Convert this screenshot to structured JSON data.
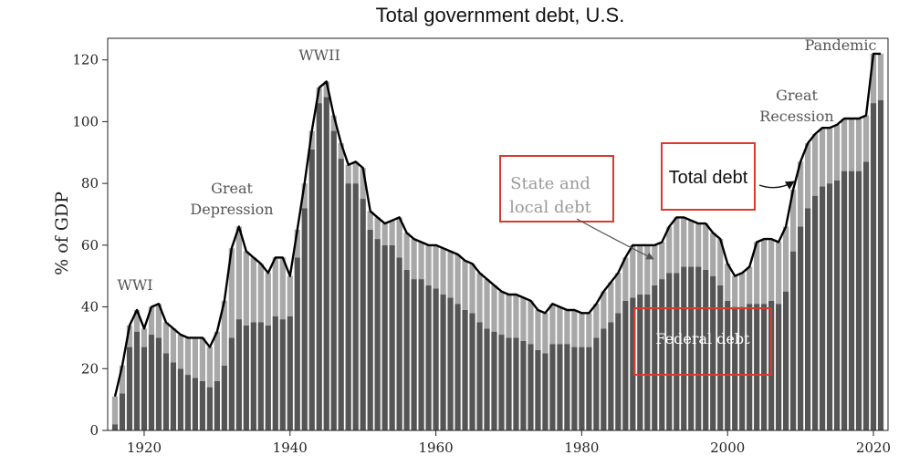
{
  "chart_data": {
    "type": "bar",
    "title": "Total government debt, U.S.",
    "xlabel": "",
    "ylabel": "% of GDP",
    "xlim": [
      1915,
      2022
    ],
    "ylim": [
      0,
      127
    ],
    "xticks": [
      1920,
      1940,
      1960,
      1980,
      2000,
      2020
    ],
    "yticks": [
      0,
      20,
      40,
      60,
      80,
      100,
      120
    ],
    "colors": {
      "federal": "#555555",
      "state_local": "#a8a8a8",
      "total_line": "#000000",
      "highlight_box": "#d93a2b"
    },
    "years": [
      1916,
      1917,
      1918,
      1919,
      1920,
      1921,
      1922,
      1923,
      1924,
      1925,
      1926,
      1927,
      1928,
      1929,
      1930,
      1931,
      1932,
      1933,
      1934,
      1935,
      1936,
      1937,
      1938,
      1939,
      1940,
      1941,
      1942,
      1943,
      1944,
      1945,
      1946,
      1947,
      1948,
      1949,
      1950,
      1951,
      1952,
      1953,
      1954,
      1955,
      1956,
      1957,
      1958,
      1959,
      1960,
      1961,
      1962,
      1963,
      1964,
      1965,
      1966,
      1967,
      1968,
      1969,
      1970,
      1971,
      1972,
      1973,
      1974,
      1975,
      1976,
      1977,
      1978,
      1979,
      1980,
      1981,
      1982,
      1983,
      1984,
      1985,
      1986,
      1987,
      1988,
      1989,
      1990,
      1991,
      1992,
      1993,
      1994,
      1995,
      1996,
      1997,
      1998,
      1999,
      2000,
      2001,
      2002,
      2003,
      2004,
      2005,
      2006,
      2007,
      2008,
      2009,
      2010,
      2011,
      2012,
      2013,
      2014,
      2015,
      2016,
      2017,
      2018,
      2019,
      2020,
      2021
    ],
    "series": [
      {
        "name": "Federal debt",
        "values": [
          2,
          12,
          27,
          32,
          27,
          31,
          30,
          25,
          22,
          20,
          18,
          17,
          16,
          14,
          16,
          21,
          30,
          36,
          34,
          35,
          35,
          34,
          37,
          36,
          37,
          56,
          72,
          91,
          106,
          108,
          97,
          88,
          80,
          80,
          75,
          65,
          62,
          60,
          60,
          56,
          52,
          49,
          49,
          47,
          46,
          44,
          43,
          41,
          39,
          38,
          35,
          33,
          32,
          31,
          30,
          30,
          29,
          28,
          26,
          25,
          28,
          28,
          28,
          27,
          27,
          27,
          30,
          33,
          35,
          38,
          42,
          43,
          44,
          44,
          47,
          49,
          51,
          51,
          53,
          53,
          53,
          52,
          50,
          47,
          42,
          40,
          40,
          41,
          41,
          41,
          42,
          41,
          45,
          58,
          66,
          72,
          76,
          79,
          80,
          81,
          84,
          84,
          84,
          87,
          106,
          107
        ]
      },
      {
        "name": "State and local debt",
        "values": [
          9,
          9,
          7,
          7,
          6,
          9,
          11,
          10,
          11,
          11,
          12,
          13,
          14,
          13,
          16,
          21,
          29,
          30,
          24,
          21,
          19,
          17,
          19,
          20,
          13,
          9,
          8,
          6,
          5,
          5,
          5,
          5,
          6,
          7,
          10,
          6,
          7,
          7,
          8,
          13,
          12,
          13,
          12,
          13,
          14,
          15,
          15,
          16,
          16,
          16,
          16,
          16,
          15,
          14,
          14,
          14,
          14,
          14,
          13,
          13,
          13,
          12,
          11,
          12,
          11,
          11,
          11,
          12,
          13,
          13,
          14,
          17,
          16,
          16,
          13,
          12,
          15,
          18,
          16,
          15,
          14,
          15,
          14,
          15,
          12,
          10,
          11,
          12,
          20,
          21,
          20,
          20,
          21,
          20,
          21,
          21,
          20,
          19,
          18,
          18,
          17,
          17,
          17,
          15,
          16,
          15
        ]
      },
      {
        "name": "Total debt",
        "values": [
          11,
          21,
          34,
          39,
          33,
          40,
          41,
          35,
          33,
          31,
          30,
          30,
          30,
          27,
          32,
          42,
          59,
          66,
          58,
          56,
          54,
          51,
          56,
          56,
          50,
          65,
          80,
          97,
          111,
          113,
          102,
          93,
          86,
          87,
          85,
          71,
          69,
          67,
          68,
          69,
          64,
          62,
          61,
          60,
          60,
          59,
          58,
          57,
          55,
          54,
          51,
          49,
          47,
          45,
          44,
          44,
          43,
          42,
          39,
          38,
          41,
          40,
          39,
          39,
          38,
          38,
          41,
          45,
          48,
          51,
          56,
          60,
          60,
          60,
          60,
          61,
          66,
          69,
          69,
          68,
          67,
          67,
          64,
          62,
          54,
          50,
          51,
          53,
          61,
          62,
          62,
          61,
          66,
          78,
          87,
          93,
          96,
          98,
          98,
          99,
          101,
          101,
          101,
          102,
          122,
          122
        ]
      }
    ],
    "annotations": {
      "ww1": "WWI",
      "great_depression_1": "Great",
      "great_depression_2": "Depression",
      "ww2": "WWII",
      "state_local_1": "State and",
      "state_local_2": "local debt",
      "total_debt": "Total debt",
      "great_recession_1": "Great",
      "great_recession_2": "Recession",
      "pandemic": "Pandemic",
      "federal_debt": "Federal debt"
    }
  }
}
